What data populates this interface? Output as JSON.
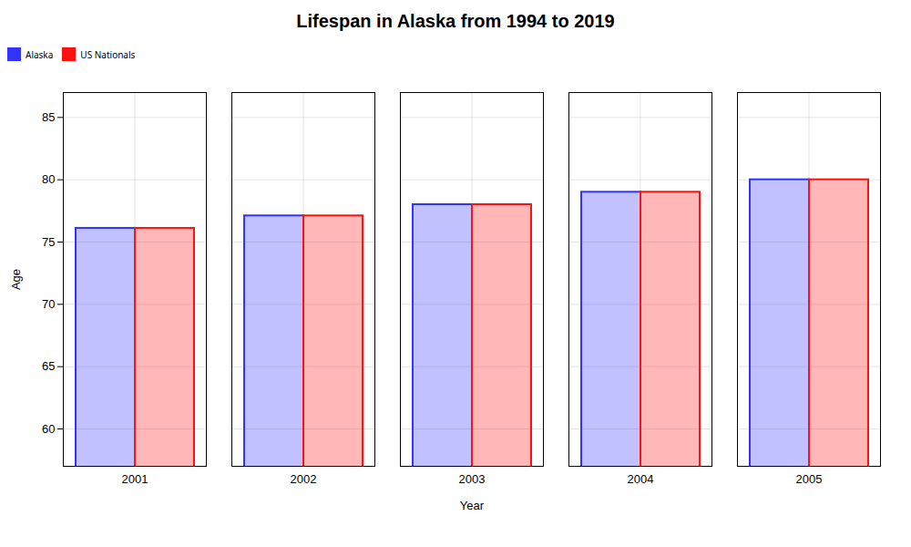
{
  "chart_data": {
    "type": "bar",
    "title": "Lifespan in Alaska from 1994 to 2019",
    "xlabel": "Year",
    "ylabel": "Age",
    "categories": [
      "2001",
      "2002",
      "2003",
      "2004",
      "2005"
    ],
    "series": [
      {
        "name": "Alaska",
        "color": "#3333ff",
        "values": [
          76.1,
          77.1,
          78.0,
          79.0,
          80.0
        ]
      },
      {
        "name": "US Nationals",
        "color": "#ff1111",
        "values": [
          76.1,
          77.1,
          78.0,
          79.0,
          80.0
        ]
      }
    ],
    "ylim": [
      57,
      87
    ],
    "yticks": [
      60,
      65,
      70,
      75,
      80,
      85
    ],
    "grid": true,
    "legend": "top"
  }
}
